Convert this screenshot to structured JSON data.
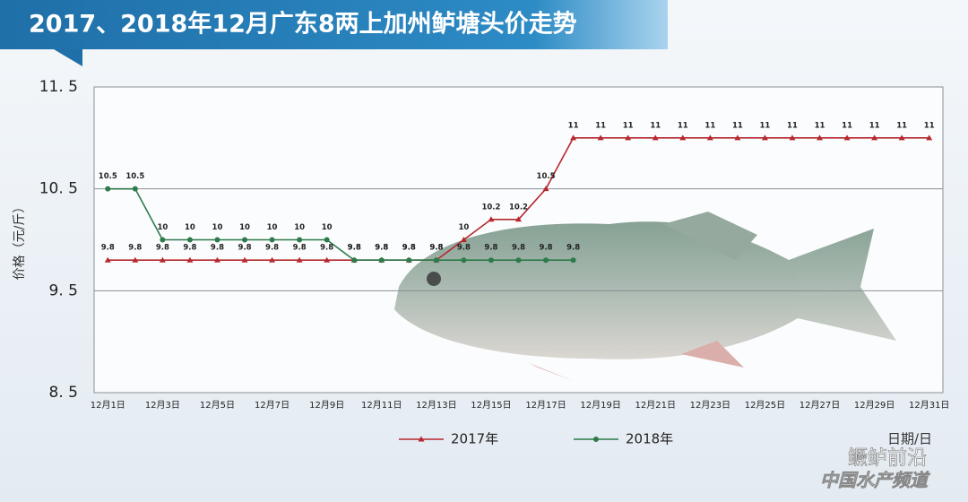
{
  "chart_data": {
    "type": "line",
    "title": "2017、2018年12月广东8两上加州鲈塘头价走势",
    "y_label": "价格（元/斤）",
    "x_label": "日期/日",
    "categories": [
      "12月1日",
      null,
      "12月3日",
      null,
      "12月5日",
      null,
      "12月7日",
      null,
      "12月9日",
      null,
      "12月11日",
      null,
      "12月13日",
      null,
      "12月15日",
      null,
      "12月17日",
      null,
      "12月19日",
      null,
      "12月21日",
      null,
      "12月23日",
      null,
      "12月25日",
      null,
      "12月27日",
      null,
      "12月29日",
      null,
      "12月31日"
    ],
    "series": [
      {
        "name": "2017年",
        "color": "#b5282e",
        "marker": "triangle",
        "values": [
          9.8,
          9.8,
          9.8,
          9.8,
          9.8,
          9.8,
          9.8,
          9.8,
          9.8,
          9.8,
          9.8,
          9.8,
          9.8,
          10,
          10.2,
          10.2,
          10.5,
          11,
          11,
          11,
          11,
          11,
          11,
          11,
          11,
          11,
          11,
          11,
          11,
          11,
          11
        ]
      },
      {
        "name": "2018年",
        "color": "#2d7a4b",
        "marker": "circle",
        "values": [
          10.5,
          10.5,
          10,
          10,
          10,
          10,
          10,
          10,
          10,
          9.8,
          9.8,
          9.8,
          9.8,
          9.8,
          9.8,
          9.8,
          9.8,
          9.8,
          null,
          null,
          null,
          null,
          null,
          null,
          null,
          null,
          null,
          null,
          null,
          null,
          null
        ]
      }
    ],
    "ylim": [
      8.5,
      11.5
    ],
    "yticks": [
      {
        "value": 8.5,
        "label": "8. 5"
      },
      {
        "value": 9.5,
        "label": "9. 5"
      },
      {
        "value": 10.5,
        "label": "10. 5"
      },
      {
        "value": 11.5,
        "label": "11. 5"
      }
    ],
    "grid": true,
    "legend": "bottom",
    "watermark": [
      "鳜鲈前沿",
      "中国水产频道"
    ]
  }
}
